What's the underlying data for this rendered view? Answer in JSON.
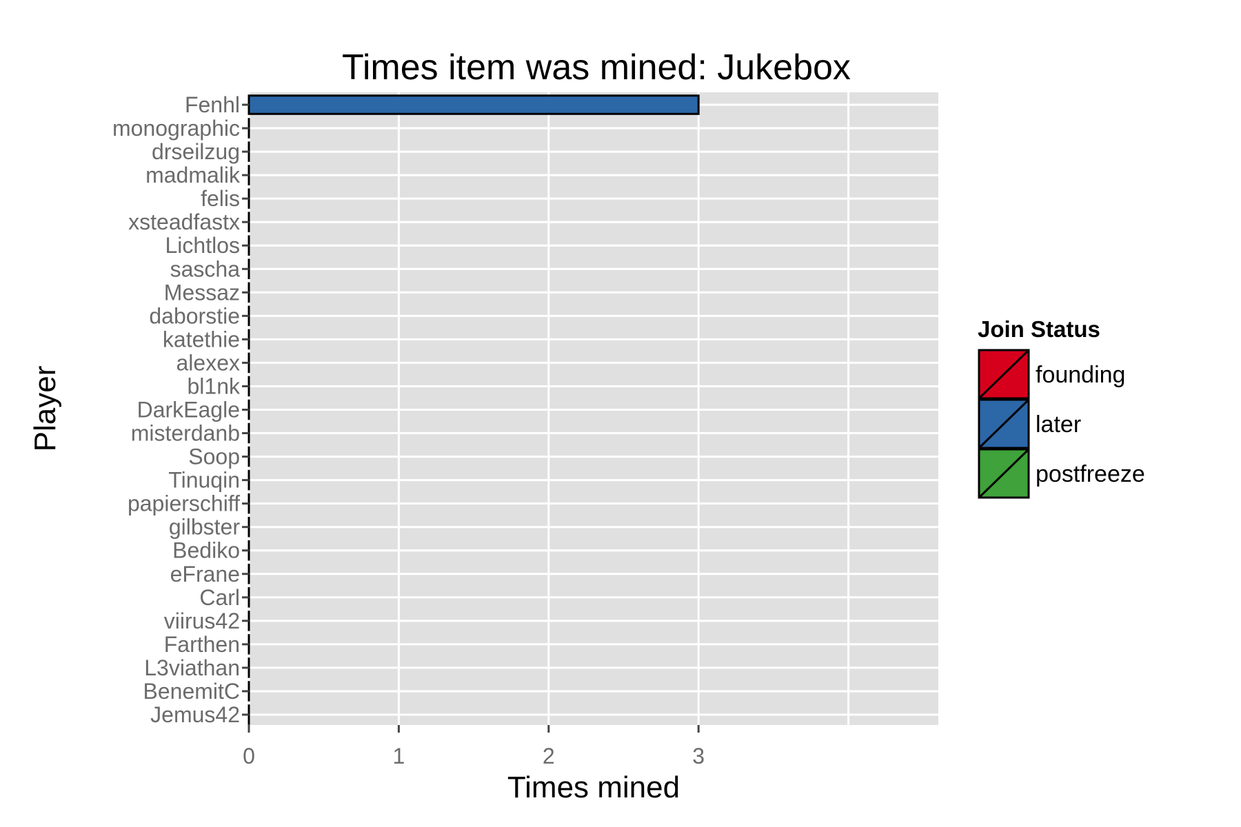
{
  "chart_data": {
    "type": "bar",
    "orientation": "horizontal",
    "title": "Times item was mined: Jukebox",
    "xlabel": "Times mined",
    "ylabel": "Player",
    "xlim": [
      0,
      4.6
    ],
    "x_ticks": [
      0,
      1,
      2,
      3
    ],
    "grid": true,
    "legend_position": "right",
    "legend": {
      "title": "Join Status",
      "entries": [
        {
          "label": "founding",
          "color": "#d7001c"
        },
        {
          "label": "later",
          "color": "#2c67a8"
        },
        {
          "label": "postfreeze",
          "color": "#3fa23a"
        }
      ]
    },
    "categories": [
      "Fenhl",
      "monographic",
      "drseilzug",
      "madmalik",
      "felis",
      "xsteadfastx",
      "Lichtlos",
      "sascha",
      "Messaz",
      "daborstie",
      "katethie",
      "alexex",
      "bl1nk",
      "DarkEagle",
      "misterdanb",
      "Soop",
      "Tinuqin",
      "papierschiff",
      "gilbster",
      "Bediko",
      "eFrane",
      "Carl",
      "viirus42",
      "Farthen",
      "L3viathan",
      "BenemitC",
      "Jemus42"
    ],
    "values": [
      3,
      0,
      0,
      0,
      0,
      0,
      0,
      0,
      0,
      0,
      0,
      0,
      0,
      0,
      0,
      0,
      0,
      0,
      0,
      0,
      0,
      0,
      0,
      0,
      0,
      0,
      0
    ],
    "status": [
      "later",
      "later",
      "later",
      "later",
      "later",
      "later",
      "later",
      "later",
      "later",
      "later",
      "later",
      "later",
      "later",
      "later",
      "later",
      "later",
      "later",
      "later",
      "later",
      "later",
      "later",
      "later",
      "later",
      "later",
      "later",
      "later",
      "later"
    ]
  }
}
